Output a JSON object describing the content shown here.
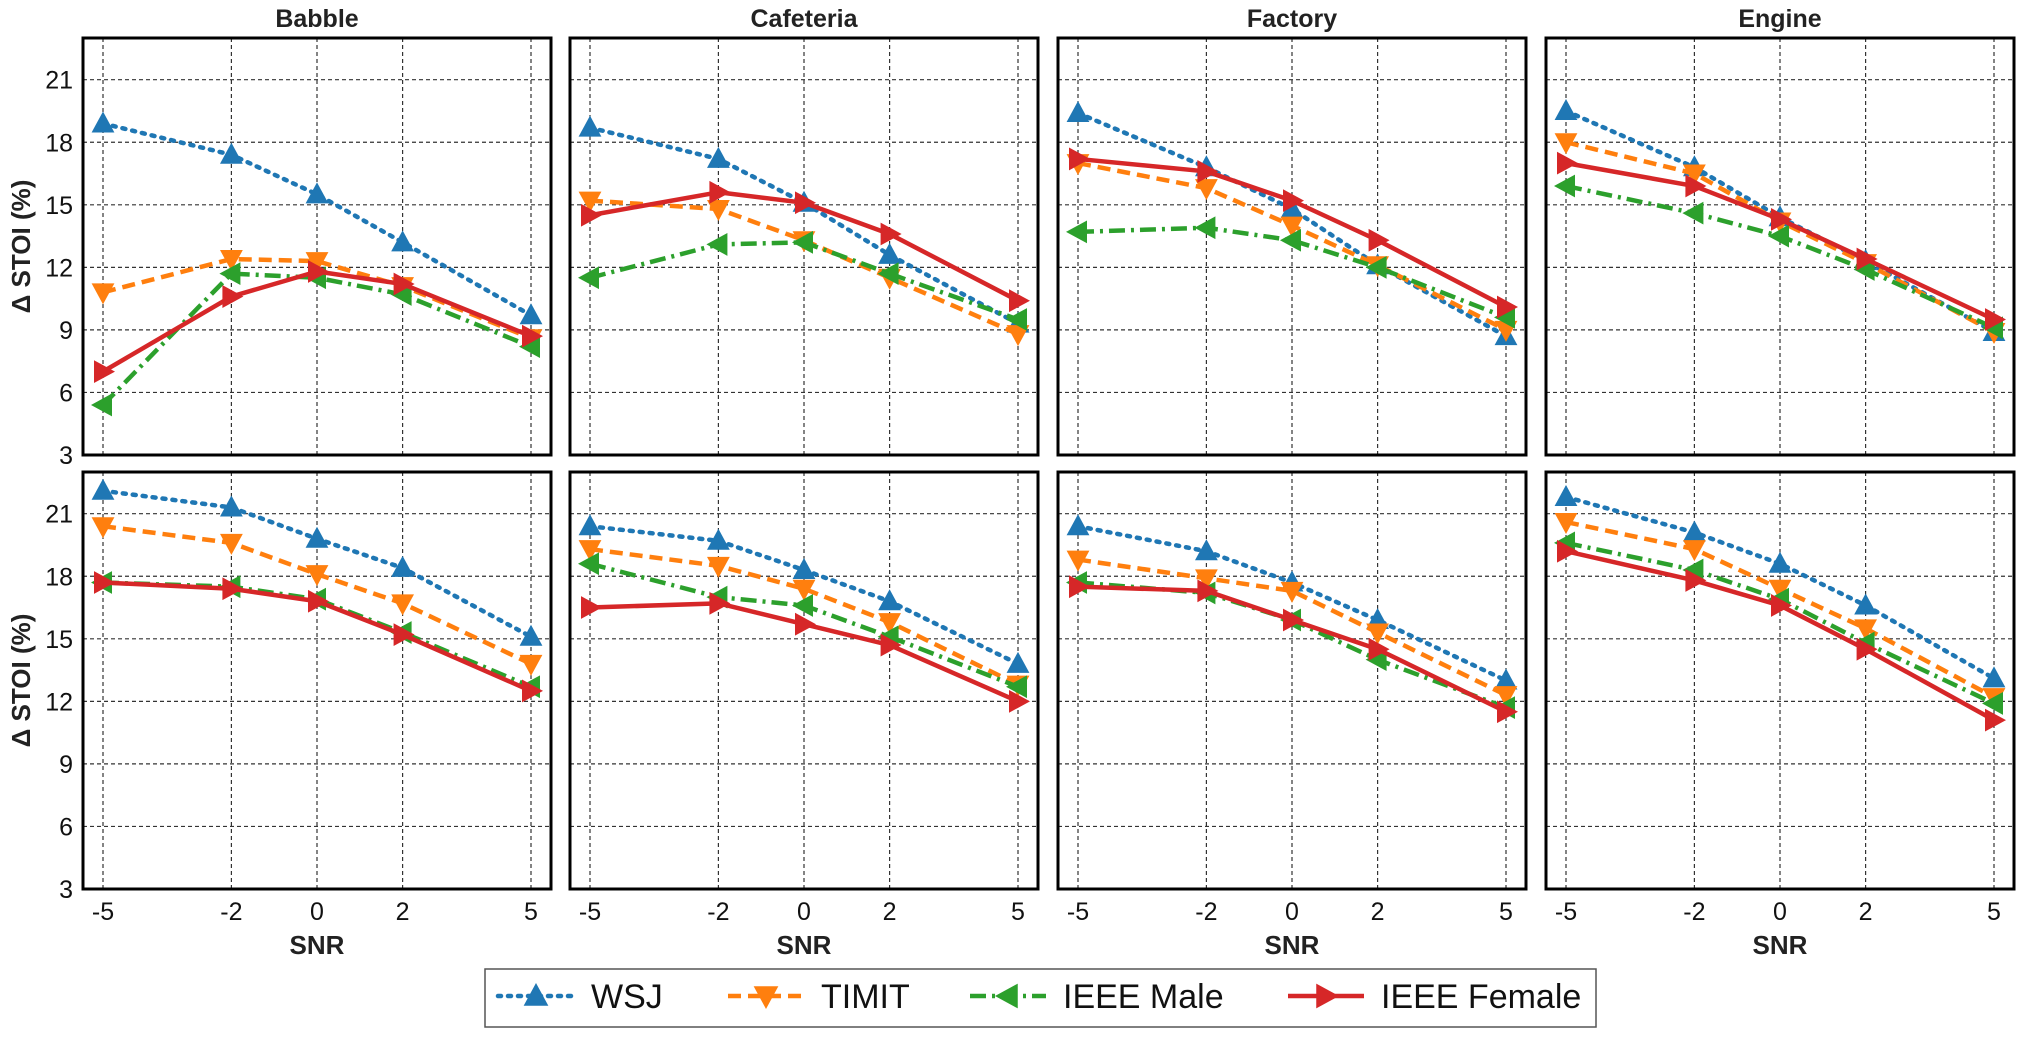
{
  "chart_data": {
    "type": "line",
    "panel_titles": [
      "Babble",
      "Cafeteria",
      "Factory",
      "Engine"
    ],
    "xlabel": "SNR",
    "ylabel": "Δ STOI (%)",
    "x": [
      -5,
      -2,
      0,
      2,
      5
    ],
    "x_tick_labels": [
      "-5",
      "-2",
      "0",
      "2",
      "5"
    ],
    "ylim": [
      3,
      23
    ],
    "yticks": [
      3,
      6,
      9,
      12,
      15,
      18,
      21
    ],
    "grid": true,
    "legend_position": "bottom-center",
    "series_styles": [
      {
        "name": "WSJ",
        "color": "#1f77b4",
        "dash": "dotted",
        "marker": "triangle-up"
      },
      {
        "name": "TIMIT",
        "color": "#ff7f0e",
        "dash": "dashed",
        "marker": "triangle-down"
      },
      {
        "name": "IEEE Male",
        "color": "#2ca02c",
        "dash": "dashdot",
        "marker": "triangle-left"
      },
      {
        "name": "IEEE Female",
        "color": "#d62728",
        "dash": "solid",
        "marker": "triangle-right"
      }
    ],
    "panels": [
      {
        "row": 0,
        "title": "Babble",
        "series": [
          {
            "name": "WSJ",
            "values": [
              18.9,
              17.4,
              15.5,
              13.2,
              9.7
            ]
          },
          {
            "name": "TIMIT",
            "values": [
              10.8,
              12.4,
              12.3,
              11.1,
              8.6
            ]
          },
          {
            "name": "IEEE Male",
            "values": [
              5.4,
              11.7,
              11.5,
              10.7,
              8.2
            ]
          },
          {
            "name": "IEEE Female",
            "values": [
              7.0,
              10.6,
              11.8,
              11.2,
              8.7
            ]
          }
        ]
      },
      {
        "row": 0,
        "title": "Cafeteria",
        "series": [
          {
            "name": "WSJ",
            "values": [
              18.7,
              17.2,
              15.1,
              12.6,
              9.3
            ]
          },
          {
            "name": "TIMIT",
            "values": [
              15.2,
              14.8,
              13.3,
              11.5,
              8.8
            ]
          },
          {
            "name": "IEEE Male",
            "values": [
              11.5,
              13.1,
              13.2,
              11.7,
              9.5
            ]
          },
          {
            "name": "IEEE Female",
            "values": [
              14.5,
              15.6,
              15.1,
              13.6,
              10.4
            ]
          }
        ]
      },
      {
        "row": 0,
        "title": "Factory",
        "series": [
          {
            "name": "WSJ",
            "values": [
              19.4,
              16.8,
              14.8,
              12.1,
              8.7
            ]
          },
          {
            "name": "TIMIT",
            "values": [
              17.0,
              15.8,
              14.0,
              12.1,
              9.0
            ]
          },
          {
            "name": "IEEE Male",
            "values": [
              13.7,
              13.9,
              13.3,
              12.0,
              9.6
            ]
          },
          {
            "name": "IEEE Female",
            "values": [
              17.2,
              16.6,
              15.2,
              13.3,
              10.1
            ]
          }
        ]
      },
      {
        "row": 0,
        "title": "Engine",
        "series": [
          {
            "name": "WSJ",
            "values": [
              19.5,
              16.8,
              14.4,
              12.3,
              8.9
            ]
          },
          {
            "name": "TIMIT",
            "values": [
              18.0,
              16.5,
              14.2,
              12.2,
              8.9
            ]
          },
          {
            "name": "IEEE Male",
            "values": [
              15.9,
              14.6,
              13.5,
              11.9,
              9.1
            ]
          },
          {
            "name": "IEEE Female",
            "values": [
              17.0,
              15.9,
              14.3,
              12.4,
              9.5
            ]
          }
        ]
      },
      {
        "row": 1,
        "title": "Babble",
        "series": [
          {
            "name": "WSJ",
            "values": [
              22.1,
              21.3,
              19.8,
              18.4,
              15.1
            ]
          },
          {
            "name": "TIMIT",
            "values": [
              20.4,
              19.6,
              18.1,
              16.7,
              13.8
            ]
          },
          {
            "name": "IEEE Male",
            "values": [
              17.7,
              17.5,
              16.9,
              15.3,
              12.7
            ]
          },
          {
            "name": "IEEE Female",
            "values": [
              17.7,
              17.4,
              16.8,
              15.2,
              12.5
            ]
          }
        ]
      },
      {
        "row": 1,
        "title": "Cafeteria",
        "series": [
          {
            "name": "WSJ",
            "values": [
              20.4,
              19.7,
              18.3,
              16.8,
              13.8
            ]
          },
          {
            "name": "TIMIT",
            "values": [
              19.3,
              18.5,
              17.4,
              15.8,
              12.8
            ]
          },
          {
            "name": "IEEE Male",
            "values": [
              18.6,
              17.0,
              16.6,
              15.1,
              12.7
            ]
          },
          {
            "name": "IEEE Female",
            "values": [
              16.5,
              16.7,
              15.7,
              14.7,
              12.0
            ]
          }
        ]
      },
      {
        "row": 1,
        "title": "Factory",
        "series": [
          {
            "name": "WSJ",
            "values": [
              20.4,
              19.2,
              17.7,
              15.9,
              13.0
            ]
          },
          {
            "name": "TIMIT",
            "values": [
              18.8,
              17.9,
              17.3,
              15.3,
              12.3
            ]
          },
          {
            "name": "IEEE Male",
            "values": [
              17.7,
              17.2,
              15.9,
              14.0,
              11.7
            ]
          },
          {
            "name": "IEEE Female",
            "values": [
              17.5,
              17.3,
              15.9,
              14.5,
              11.5
            ]
          }
        ]
      },
      {
        "row": 1,
        "title": "Engine",
        "series": [
          {
            "name": "WSJ",
            "values": [
              21.8,
              20.1,
              18.6,
              16.6,
              13.1
            ]
          },
          {
            "name": "TIMIT",
            "values": [
              20.6,
              19.3,
              17.4,
              15.5,
              12.2
            ]
          },
          {
            "name": "IEEE Male",
            "values": [
              19.6,
              18.3,
              16.9,
              14.8,
              11.9
            ]
          },
          {
            "name": "IEEE Female",
            "values": [
              19.2,
              17.8,
              16.6,
              14.5,
              11.1
            ]
          }
        ]
      }
    ]
  }
}
